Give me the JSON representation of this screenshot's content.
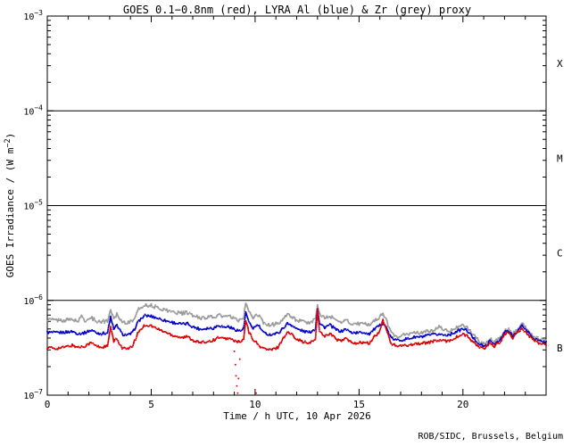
{
  "footer": {
    "credit": "ROB/SIDC, Brussels, Belgium"
  },
  "chart_data": {
    "type": "line",
    "title": "GOES 0.1−0.8nm (red), LYRA Al (blue) & Zr (grey) proxy",
    "xlabel": "Time / h UTC, 10 Apr 2026",
    "ylabel": {
      "prefix": "GOES Irradiance / (W m",
      "exponent": "−2",
      "suffix": ")"
    },
    "x_axis": {
      "min": 0,
      "max": 24,
      "major_ticks": [
        0,
        5,
        10,
        15,
        20
      ],
      "minor_tick_step": 1
    },
    "y_axis": {
      "scale": "log",
      "min": 1e-07,
      "max": 0.001,
      "ticks": [
        {
          "label_base": "10",
          "label_exponent": "−3",
          "value": 0.001
        },
        {
          "label_base": "10",
          "label_exponent": "−4",
          "value": 0.0001
        },
        {
          "label_base": "10",
          "label_exponent": "−5",
          "value": 1e-05
        },
        {
          "label_base": "10",
          "label_exponent": "−6",
          "value": 1e-06
        },
        {
          "label_base": "10",
          "label_exponent": "−7",
          "value": 1e-07
        }
      ]
    },
    "hlines": [
      0.0001,
      1e-05,
      1e-06
    ],
    "flare_class_labels": [
      "X",
      "M",
      "C",
      "B"
    ],
    "series": [
      {
        "id": "goes-xray-series",
        "name": "GOES 0.1-0.8nm",
        "color": "#dd0000",
        "unit": 1e-07,
        "points": [
          [
            0,
            3.2
          ],
          [
            0.4,
            3.1
          ],
          [
            0.8,
            3.2
          ],
          [
            1.2,
            3.35
          ],
          [
            1.5,
            3.2
          ],
          [
            1.8,
            3.3
          ],
          [
            2.0,
            3.5
          ],
          [
            2.15,
            3.55
          ],
          [
            2.35,
            3.3
          ],
          [
            2.6,
            3.2
          ],
          [
            2.9,
            3.3
          ],
          [
            3.05,
            5.2
          ],
          [
            3.2,
            3.7
          ],
          [
            3.35,
            3.9
          ],
          [
            3.6,
            3.15
          ],
          [
            3.9,
            3.05
          ],
          [
            4.1,
            3.3
          ],
          [
            4.4,
            4.7
          ],
          [
            4.7,
            5.5
          ],
          [
            5.0,
            5.4
          ],
          [
            5.3,
            5.0
          ],
          [
            5.7,
            4.6
          ],
          [
            6.1,
            4.25
          ],
          [
            6.5,
            4.05
          ],
          [
            6.75,
            4.15
          ],
          [
            7.0,
            3.8
          ],
          [
            7.4,
            3.55
          ],
          [
            7.7,
            3.7
          ],
          [
            8.0,
            3.8
          ],
          [
            8.25,
            4.1
          ],
          [
            8.5,
            3.9
          ],
          [
            8.7,
            4.0
          ],
          [
            9.0,
            3.75
          ],
          [
            9.3,
            3.6
          ],
          [
            9.45,
            3.9
          ],
          [
            9.55,
            6.2
          ],
          [
            9.7,
            4.6
          ],
          [
            9.9,
            3.9
          ],
          [
            10.2,
            3.3
          ],
          [
            10.5,
            3.05
          ],
          [
            10.8,
            3.0
          ],
          [
            11.1,
            3.2
          ],
          [
            11.35,
            4.0
          ],
          [
            11.55,
            4.6
          ],
          [
            11.75,
            4.4
          ],
          [
            12.0,
            3.95
          ],
          [
            12.3,
            3.65
          ],
          [
            12.6,
            3.5
          ],
          [
            12.9,
            3.9
          ],
          [
            13.0,
            7.9
          ],
          [
            13.1,
            4.7
          ],
          [
            13.35,
            4.2
          ],
          [
            13.6,
            4.5
          ],
          [
            13.9,
            3.9
          ],
          [
            14.15,
            3.7
          ],
          [
            14.35,
            4.0
          ],
          [
            14.6,
            3.6
          ],
          [
            14.9,
            3.55
          ],
          [
            15.2,
            3.6
          ],
          [
            15.5,
            3.5
          ],
          [
            15.75,
            4.2
          ],
          [
            15.95,
            4.5
          ],
          [
            16.15,
            6.1
          ],
          [
            16.3,
            5.0
          ],
          [
            16.55,
            3.5
          ],
          [
            16.8,
            3.3
          ],
          [
            17.1,
            3.3
          ],
          [
            17.4,
            3.4
          ],
          [
            17.7,
            3.5
          ],
          [
            18.0,
            3.5
          ],
          [
            18.3,
            3.6
          ],
          [
            18.6,
            3.7
          ],
          [
            18.9,
            3.8
          ],
          [
            19.1,
            3.7
          ],
          [
            19.4,
            3.8
          ],
          [
            19.7,
            4.1
          ],
          [
            20.0,
            4.4
          ],
          [
            20.2,
            4.2
          ],
          [
            20.5,
            3.6
          ],
          [
            20.8,
            3.2
          ],
          [
            21.05,
            3.1
          ],
          [
            21.3,
            3.5
          ],
          [
            21.5,
            3.3
          ],
          [
            21.75,
            3.5
          ],
          [
            22.0,
            4.4
          ],
          [
            22.15,
            4.6
          ],
          [
            22.4,
            4.0
          ],
          [
            22.6,
            4.5
          ],
          [
            22.85,
            5.1
          ],
          [
            23.1,
            4.4
          ],
          [
            23.4,
            3.8
          ],
          [
            23.7,
            3.5
          ],
          [
            24.0,
            3.4
          ]
        ]
      },
      {
        "id": "lyra-al-series",
        "name": "LYRA Al proxy",
        "color": "#0000cc",
        "unit": 1e-07,
        "points": [
          [
            0,
            4.6
          ],
          [
            0.4,
            4.55
          ],
          [
            0.8,
            4.6
          ],
          [
            1.2,
            4.7
          ],
          [
            1.5,
            4.45
          ],
          [
            1.8,
            4.55
          ],
          [
            2.0,
            4.75
          ],
          [
            2.15,
            4.85
          ],
          [
            2.35,
            4.55
          ],
          [
            2.6,
            4.45
          ],
          [
            2.9,
            4.55
          ],
          [
            3.05,
            6.7
          ],
          [
            3.2,
            4.9
          ],
          [
            3.35,
            5.5
          ],
          [
            3.6,
            4.4
          ],
          [
            3.9,
            4.3
          ],
          [
            4.1,
            4.55
          ],
          [
            4.4,
            6.1
          ],
          [
            4.7,
            6.9
          ],
          [
            5.0,
            6.8
          ],
          [
            5.3,
            6.5
          ],
          [
            5.7,
            6.1
          ],
          [
            6.1,
            5.8
          ],
          [
            6.5,
            5.6
          ],
          [
            6.75,
            5.7
          ],
          [
            7.0,
            5.25
          ],
          [
            7.4,
            4.95
          ],
          [
            7.7,
            5.1
          ],
          [
            8.0,
            5.1
          ],
          [
            8.25,
            5.5
          ],
          [
            8.5,
            5.2
          ],
          [
            8.7,
            5.3
          ],
          [
            9.0,
            4.95
          ],
          [
            9.3,
            4.75
          ],
          [
            9.45,
            5.1
          ],
          [
            9.55,
            7.5
          ],
          [
            9.7,
            5.8
          ],
          [
            9.9,
            5.1
          ],
          [
            10.15,
            5.5
          ],
          [
            10.4,
            4.55
          ],
          [
            10.7,
            4.35
          ],
          [
            11.1,
            4.5
          ],
          [
            11.35,
            5.1
          ],
          [
            11.55,
            5.7
          ],
          [
            11.75,
            5.5
          ],
          [
            12.0,
            5.0
          ],
          [
            12.3,
            4.75
          ],
          [
            12.6,
            4.6
          ],
          [
            12.9,
            5.0
          ],
          [
            13.0,
            8.3
          ],
          [
            13.1,
            5.7
          ],
          [
            13.35,
            5.2
          ],
          [
            13.6,
            5.5
          ],
          [
            13.9,
            4.9
          ],
          [
            14.15,
            4.7
          ],
          [
            14.35,
            5.0
          ],
          [
            14.6,
            4.6
          ],
          [
            14.9,
            4.55
          ],
          [
            15.2,
            4.6
          ],
          [
            15.5,
            4.45
          ],
          [
            15.75,
            5.0
          ],
          [
            15.95,
            5.3
          ],
          [
            16.15,
            5.8
          ],
          [
            16.3,
            5.2
          ],
          [
            16.55,
            4.0
          ],
          [
            16.8,
            3.8
          ],
          [
            17.1,
            3.85
          ],
          [
            17.4,
            3.95
          ],
          [
            17.7,
            4.1
          ],
          [
            18.0,
            4.1
          ],
          [
            18.3,
            4.25
          ],
          [
            18.6,
            4.35
          ],
          [
            18.9,
            4.4
          ],
          [
            19.1,
            4.3
          ],
          [
            19.4,
            4.4
          ],
          [
            19.7,
            4.7
          ],
          [
            20.0,
            5.0
          ],
          [
            20.2,
            4.8
          ],
          [
            20.5,
            4.0
          ],
          [
            20.8,
            3.45
          ],
          [
            21.05,
            3.25
          ],
          [
            21.3,
            3.7
          ],
          [
            21.5,
            3.5
          ],
          [
            21.75,
            3.7
          ],
          [
            22.0,
            4.6
          ],
          [
            22.15,
            4.8
          ],
          [
            22.4,
            4.2
          ],
          [
            22.6,
            4.7
          ],
          [
            22.85,
            5.4
          ],
          [
            23.1,
            4.7
          ],
          [
            23.4,
            4.0
          ],
          [
            23.7,
            3.7
          ],
          [
            24.0,
            3.6
          ]
        ]
      },
      {
        "id": "lyra-zr-series",
        "name": "LYRA Zr proxy",
        "color": "#999999",
        "unit": 1e-07,
        "points": [
          [
            0,
            6.3
          ],
          [
            0.4,
            6.2
          ],
          [
            0.8,
            6.15
          ],
          [
            1.2,
            6.3
          ],
          [
            1.5,
            6.0
          ],
          [
            1.65,
            6.9
          ],
          [
            1.8,
            6.1
          ],
          [
            2.0,
            6.4
          ],
          [
            2.15,
            6.5
          ],
          [
            2.35,
            6.1
          ],
          [
            2.6,
            5.95
          ],
          [
            2.9,
            6.1
          ],
          [
            3.05,
            7.9
          ],
          [
            3.2,
            6.5
          ],
          [
            3.35,
            7.2
          ],
          [
            3.6,
            5.95
          ],
          [
            3.9,
            5.8
          ],
          [
            4.1,
            6.1
          ],
          [
            4.4,
            8.0
          ],
          [
            4.7,
            9.0
          ],
          [
            5.0,
            8.8
          ],
          [
            5.3,
            8.4
          ],
          [
            5.7,
            7.9
          ],
          [
            6.1,
            7.5
          ],
          [
            6.5,
            7.3
          ],
          [
            6.75,
            7.4
          ],
          [
            7.0,
            6.9
          ],
          [
            7.4,
            6.5
          ],
          [
            7.7,
            6.7
          ],
          [
            8.0,
            6.6
          ],
          [
            8.25,
            7.0
          ],
          [
            8.5,
            6.7
          ],
          [
            8.7,
            6.8
          ],
          [
            9.0,
            6.4
          ],
          [
            9.3,
            6.1
          ],
          [
            9.45,
            6.5
          ],
          [
            9.55,
            9.7
          ],
          [
            9.7,
            7.4
          ],
          [
            9.9,
            6.6
          ],
          [
            10.15,
            7.0
          ],
          [
            10.4,
            5.8
          ],
          [
            10.7,
            5.5
          ],
          [
            11.1,
            5.7
          ],
          [
            11.35,
            6.4
          ],
          [
            11.55,
            7.0
          ],
          [
            11.75,
            6.8
          ],
          [
            12.0,
            6.2
          ],
          [
            12.3,
            5.9
          ],
          [
            12.6,
            5.8
          ],
          [
            12.9,
            6.3
          ],
          [
            13.0,
            9.2
          ],
          [
            13.1,
            7.1
          ],
          [
            13.35,
            6.5
          ],
          [
            13.6,
            6.8
          ],
          [
            13.9,
            6.1
          ],
          [
            14.15,
            5.9
          ],
          [
            14.35,
            6.3
          ],
          [
            14.6,
            5.7
          ],
          [
            14.9,
            5.6
          ],
          [
            15.2,
            5.7
          ],
          [
            15.5,
            5.5
          ],
          [
            15.75,
            6.2
          ],
          [
            15.95,
            6.5
          ],
          [
            16.15,
            7.3
          ],
          [
            16.3,
            6.3
          ],
          [
            16.55,
            4.5
          ],
          [
            16.8,
            4.2
          ],
          [
            17.1,
            4.3
          ],
          [
            17.4,
            4.4
          ],
          [
            17.7,
            4.55
          ],
          [
            18.0,
            4.55
          ],
          [
            18.3,
            4.7
          ],
          [
            18.6,
            4.8
          ],
          [
            18.85,
            5.4
          ],
          [
            19.1,
            4.75
          ],
          [
            19.4,
            4.85
          ],
          [
            19.7,
            5.2
          ],
          [
            20.0,
            5.4
          ],
          [
            20.2,
            5.2
          ],
          [
            20.5,
            4.3
          ],
          [
            20.8,
            3.65
          ],
          [
            21.05,
            3.45
          ],
          [
            21.3,
            3.9
          ],
          [
            21.5,
            3.7
          ],
          [
            21.75,
            3.9
          ],
          [
            22.0,
            4.8
          ],
          [
            22.15,
            5.0
          ],
          [
            22.4,
            4.4
          ],
          [
            22.6,
            4.9
          ],
          [
            22.85,
            5.7
          ],
          [
            23.1,
            4.9
          ],
          [
            23.4,
            4.2
          ],
          [
            23.7,
            3.9
          ],
          [
            24.0,
            3.8
          ]
        ]
      }
    ],
    "red_dropout": {
      "color": "#dd0000",
      "unit": 1e-07,
      "points": [
        [
          9.0,
          2.9
        ],
        [
          9.05,
          2.1
        ],
        [
          9.08,
          1.6
        ],
        [
          9.12,
          1.25
        ],
        [
          9.16,
          1.05
        ],
        [
          9.2,
          1.5
        ],
        [
          9.26,
          2.4
        ],
        [
          10.05,
          1.05
        ]
      ]
    }
  }
}
